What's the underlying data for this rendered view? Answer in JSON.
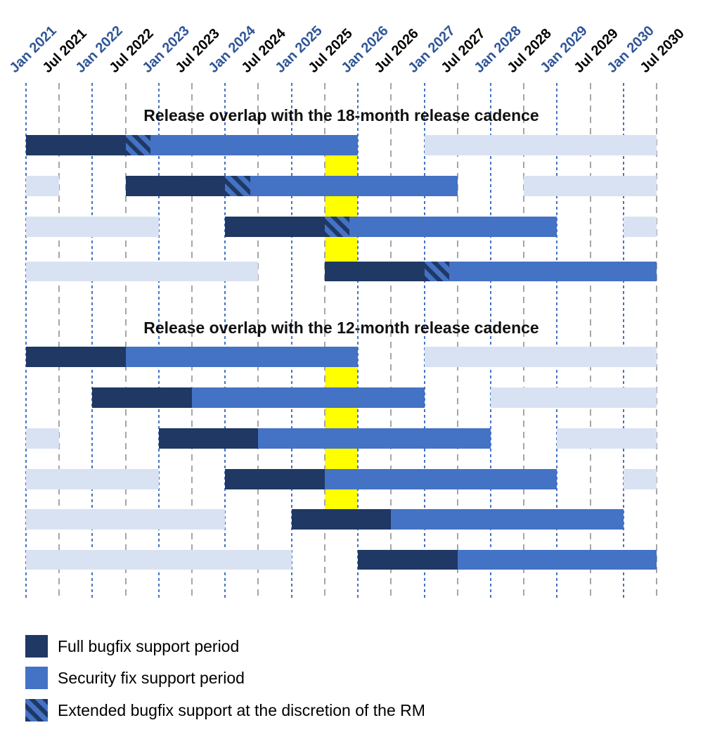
{
  "chart_data": {
    "type": "gantt",
    "description": "Release support timelines comparing 18-month and 12-month release cadences",
    "x_axis": {
      "unit": "months since Jan 2021",
      "xlim": [
        0,
        114
      ],
      "months_per_tick": 6,
      "tick_labels": [
        {
          "label": "Jan 2021",
          "style": "jan"
        },
        {
          "label": "Jul 2021",
          "style": "jul"
        },
        {
          "label": "Jan 2022",
          "style": "jan"
        },
        {
          "label": "Jul 2022",
          "style": "jul"
        },
        {
          "label": "Jan 2023",
          "style": "jan"
        },
        {
          "label": "Jul 2023",
          "style": "jul"
        },
        {
          "label": "Jan 2024",
          "style": "jan"
        },
        {
          "label": "Jul 2024",
          "style": "jul"
        },
        {
          "label": "Jan 2025",
          "style": "jan"
        },
        {
          "label": "Jul 2025",
          "style": "jul"
        },
        {
          "label": "Jan 2026",
          "style": "jan"
        },
        {
          "label": "Jul 2026",
          "style": "jul"
        },
        {
          "label": "Jan 2027",
          "style": "jan"
        },
        {
          "label": "Jul 2027",
          "style": "jul"
        },
        {
          "label": "Jan 2028",
          "style": "jan"
        },
        {
          "label": "Jul 2028",
          "style": "jul"
        },
        {
          "label": "Jan 2029",
          "style": "jan"
        },
        {
          "label": "Jul 2029",
          "style": "jul"
        },
        {
          "label": "Jan 2030",
          "style": "jan"
        },
        {
          "label": "Jul 2030",
          "style": "jul"
        }
      ]
    },
    "highlight": {
      "start_month": 54,
      "end_month": 60,
      "color": "#FFFF00"
    },
    "sections": [
      {
        "title": "Release overlap with the 18-month release cadence",
        "rows": [
          [
            {
              "kind": "full",
              "start": 0,
              "end": 18
            },
            {
              "kind": "extended",
              "start": 18,
              "end": 22.5
            },
            {
              "kind": "security",
              "start": 22.5,
              "end": 60
            },
            {
              "kind": "other",
              "start": 72,
              "end": 114
            }
          ],
          [
            {
              "kind": "other",
              "start": 0,
              "end": 6
            },
            {
              "kind": "full",
              "start": 18,
              "end": 36
            },
            {
              "kind": "extended",
              "start": 36,
              "end": 40.5
            },
            {
              "kind": "security",
              "start": 40.5,
              "end": 78
            },
            {
              "kind": "other",
              "start": 90,
              "end": 114
            }
          ],
          [
            {
              "kind": "other",
              "start": 0,
              "end": 24
            },
            {
              "kind": "full",
              "start": 36,
              "end": 54
            },
            {
              "kind": "extended",
              "start": 54,
              "end": 58.5
            },
            {
              "kind": "security",
              "start": 58.5,
              "end": 96
            },
            {
              "kind": "other",
              "start": 108,
              "end": 114
            }
          ],
          [
            {
              "kind": "other",
              "start": 0,
              "end": 42
            },
            {
              "kind": "full",
              "start": 54,
              "end": 72
            },
            {
              "kind": "extended",
              "start": 72,
              "end": 76.5
            },
            {
              "kind": "security",
              "start": 76.5,
              "end": 114
            }
          ]
        ]
      },
      {
        "title": "Release overlap with the 12-month release cadence",
        "rows": [
          [
            {
              "kind": "full",
              "start": 0,
              "end": 18
            },
            {
              "kind": "security",
              "start": 18,
              "end": 60
            },
            {
              "kind": "other",
              "start": 72,
              "end": 114
            }
          ],
          [
            {
              "kind": "full",
              "start": 12,
              "end": 30
            },
            {
              "kind": "security",
              "start": 30,
              "end": 72
            },
            {
              "kind": "other",
              "start": 84,
              "end": 114
            }
          ],
          [
            {
              "kind": "other",
              "start": 0,
              "end": 6
            },
            {
              "kind": "full",
              "start": 24,
              "end": 42
            },
            {
              "kind": "security",
              "start": 42,
              "end": 84
            },
            {
              "kind": "other",
              "start": 96,
              "end": 114
            }
          ],
          [
            {
              "kind": "other",
              "start": 0,
              "end": 24
            },
            {
              "kind": "full",
              "start": 36,
              "end": 54
            },
            {
              "kind": "security",
              "start": 54,
              "end": 96
            },
            {
              "kind": "other",
              "start": 108,
              "end": 114
            }
          ],
          [
            {
              "kind": "other",
              "start": 0,
              "end": 36
            },
            {
              "kind": "full",
              "start": 48,
              "end": 66
            },
            {
              "kind": "security",
              "start": 66,
              "end": 108
            }
          ],
          [
            {
              "kind": "other",
              "start": 0,
              "end": 48
            },
            {
              "kind": "full",
              "start": 60,
              "end": 78
            },
            {
              "kind": "security",
              "start": 78,
              "end": 114
            }
          ]
        ]
      }
    ],
    "legend": [
      {
        "kind": "full",
        "label": "Full bugfix support period"
      },
      {
        "kind": "security",
        "label": "Security fix support period"
      },
      {
        "kind": "extended",
        "label": "Extended bugfix support at the discretion of the RM"
      }
    ],
    "colors": {
      "full": "#1F3864",
      "security": "#4472C4",
      "other": "#D9E2F3",
      "extended_stripes": "#1F3864 on #4472C4",
      "highlight": "#FFFF00",
      "grid_jan": "#4472C4",
      "grid_jul": "#A6A6A6",
      "label_jan": "#2F5597",
      "label_jul": "#000000"
    }
  }
}
